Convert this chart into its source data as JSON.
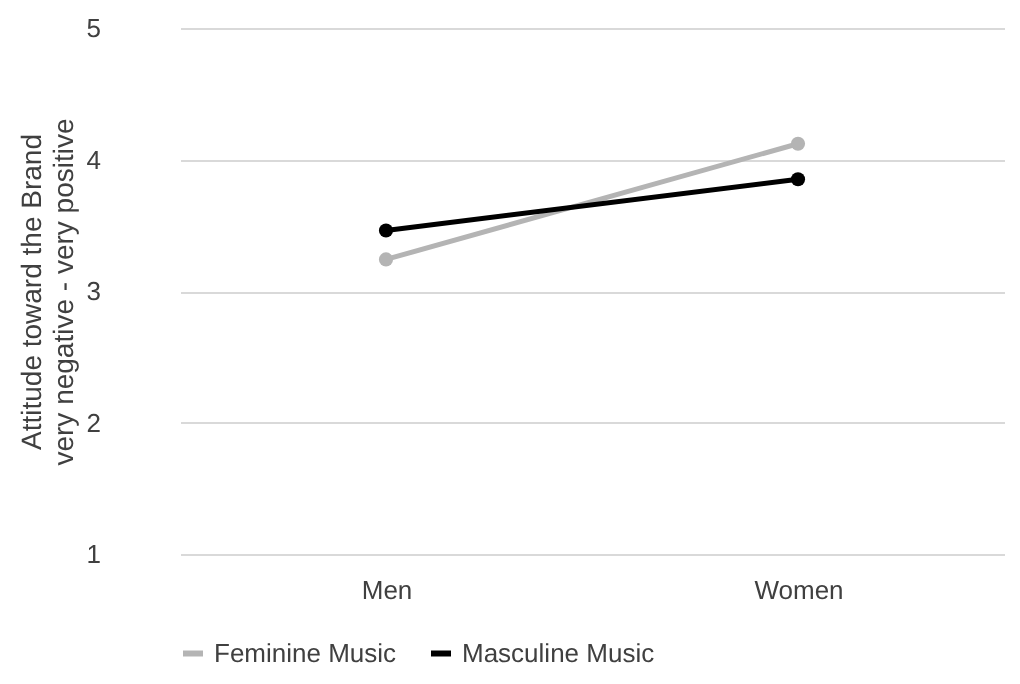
{
  "chart_data": {
    "type": "line",
    "categories": [
      "Men",
      "Women"
    ],
    "ylabel": "Attitude toward the Brand\nvery negative - very positive",
    "series": [
      {
        "name": "Feminine Music",
        "color": "#b4b4b4",
        "values": [
          3.24,
          4.12
        ]
      },
      {
        "name": "Masculine Music",
        "color": "#000000",
        "values": [
          3.46,
          3.85
        ]
      }
    ],
    "ylim": [
      1,
      5
    ],
    "yticks": [
      1,
      2,
      3,
      4,
      5
    ],
    "grid": "y",
    "legend": "bottom",
    "marker": "circle",
    "line_style": "solid"
  }
}
